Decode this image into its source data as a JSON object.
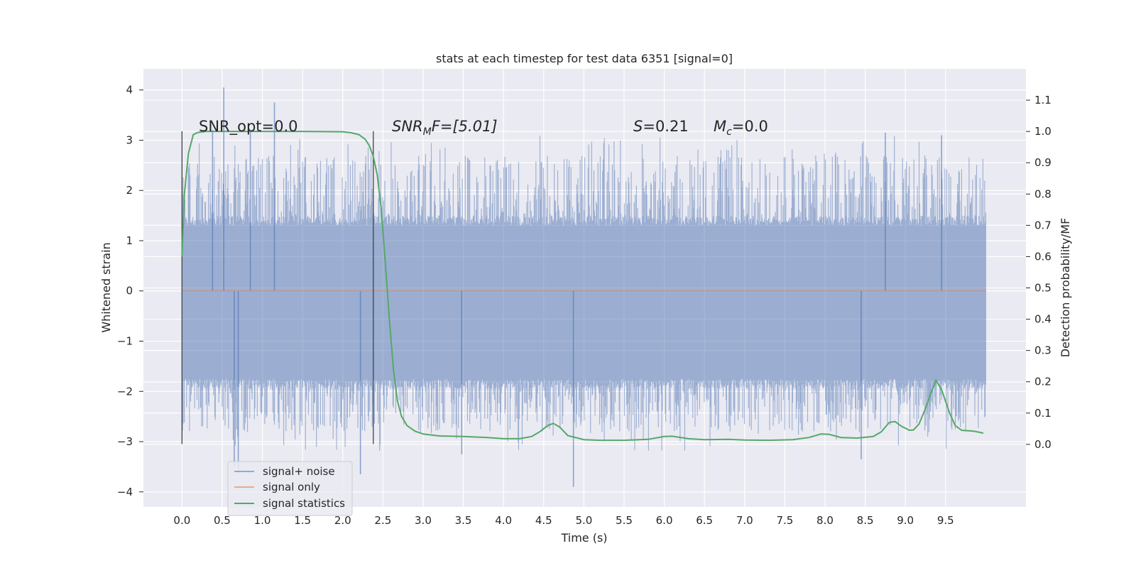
{
  "chart_data": {
    "type": "line",
    "title": "stats at each timestep for test data 6351 [signal=0]",
    "xlabel": "Time (s)",
    "ylabel_left": "Whitened strain",
    "ylabel_right": "Detection probability/MF",
    "xlim": [
      -0.48,
      10.5
    ],
    "ylim_left": [
      -4.3,
      4.42
    ],
    "ylim_right": [
      -0.2,
      1.2
    ],
    "xticks": [
      "0.0",
      "0.5",
      "1.0",
      "1.5",
      "2.0",
      "2.5",
      "3.0",
      "3.5",
      "4.0",
      "4.5",
      "5.0",
      "5.5",
      "6.0",
      "6.5",
      "7.0",
      "7.5",
      "8.0",
      "8.5",
      "9.0",
      "9.5"
    ],
    "yticks_left": [
      "4",
      "3",
      "2",
      "1",
      "0",
      "−1",
      "−2",
      "−3",
      "−4"
    ],
    "yticks_right": [
      "1.1",
      "1.0",
      "0.9",
      "0.8",
      "0.7",
      "0.6",
      "0.5",
      "0.4",
      "0.3",
      "0.2",
      "0.1",
      "0.0"
    ],
    "grid": true,
    "legend_position": "lower-left",
    "annotations": [
      {
        "text": "SNR_opt=0.0"
      },
      {
        "main": "SNR",
        "sub": "M",
        "rest": "F=[5.01]"
      },
      {
        "main": "S",
        "rest": "=0.21"
      },
      {
        "main": "M",
        "sub": "c",
        "rest": "=0.0"
      }
    ],
    "vlines": [
      0.0,
      2.38
    ],
    "vline_range": [
      -3.05,
      3.18
    ],
    "series": [
      {
        "name": "signal+ noise",
        "color": "#4c72b0",
        "kind": "noise",
        "x_range": [
          0.0,
          10.0
        ],
        "band_inner": [
          -1.75,
          1.3
        ],
        "band_outer": [
          -2.6,
          2.5
        ],
        "peaks_high": [
          [
            0.52,
            4.05
          ],
          [
            1.15,
            3.75
          ],
          [
            0.38,
            3.2
          ],
          [
            0.85,
            3.2
          ],
          [
            8.75,
            3.15
          ],
          [
            9.45,
            3.1
          ]
        ],
        "peaks_low": [
          [
            0.65,
            -3.5
          ],
          [
            0.7,
            -3.6
          ],
          [
            2.22,
            -3.65
          ],
          [
            4.87,
            -3.9
          ],
          [
            3.48,
            -3.25
          ],
          [
            8.45,
            -3.35
          ]
        ],
        "axis": "left"
      },
      {
        "name": "signal only",
        "color": "#dd8452",
        "x": [
          0.0,
          10.0
        ],
        "y": [
          0.0,
          0.0
        ],
        "axis": "left"
      },
      {
        "name": "signal statistics",
        "color": "#55a868",
        "axis": "right",
        "x": [
          0.0,
          0.03,
          0.08,
          0.14,
          0.2,
          0.3,
          0.5,
          1.0,
          1.5,
          2.0,
          2.1,
          2.2,
          2.28,
          2.33,
          2.38,
          2.43,
          2.48,
          2.53,
          2.58,
          2.63,
          2.68,
          2.73,
          2.8,
          2.9,
          3.0,
          3.2,
          3.5,
          3.8,
          4.0,
          4.2,
          4.35,
          4.45,
          4.55,
          4.62,
          4.7,
          4.8,
          5.0,
          5.2,
          5.5,
          5.8,
          6.0,
          6.1,
          6.3,
          6.5,
          6.8,
          7.0,
          7.3,
          7.6,
          7.8,
          7.95,
          8.05,
          8.2,
          8.4,
          8.6,
          8.7,
          8.8,
          8.87,
          8.95,
          9.05,
          9.1,
          9.17,
          9.25,
          9.32,
          9.38,
          9.45,
          9.55,
          9.62,
          9.7,
          9.85,
          9.97
        ],
        "y": [
          0.6,
          0.8,
          0.93,
          0.99,
          0.997,
          1.0,
          1.0,
          1.0,
          1.0,
          0.999,
          0.996,
          0.99,
          0.975,
          0.955,
          0.92,
          0.86,
          0.75,
          0.58,
          0.4,
          0.24,
          0.14,
          0.09,
          0.06,
          0.042,
          0.033,
          0.027,
          0.025,
          0.022,
          0.018,
          0.018,
          0.025,
          0.04,
          0.06,
          0.067,
          0.055,
          0.028,
          0.015,
          0.013,
          0.013,
          0.016,
          0.025,
          0.026,
          0.018,
          0.015,
          0.016,
          0.014,
          0.013,
          0.015,
          0.022,
          0.033,
          0.032,
          0.022,
          0.02,
          0.025,
          0.04,
          0.07,
          0.073,
          0.058,
          0.045,
          0.046,
          0.065,
          0.115,
          0.165,
          0.205,
          0.175,
          0.1,
          0.06,
          0.045,
          0.042,
          0.036
        ]
      }
    ]
  }
}
